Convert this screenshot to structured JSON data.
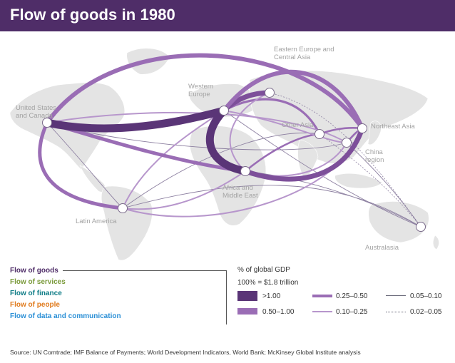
{
  "title": "Flow of goods in 1980",
  "regions": [
    {
      "id": "us_canada",
      "label": "United States\nand Canada"
    },
    {
      "id": "western_europe",
      "label": "Western\nEurope"
    },
    {
      "id": "eastern_europe",
      "label": "Eastern Europe and\nCentral Asia"
    },
    {
      "id": "other_asia",
      "label": "Other Asia"
    },
    {
      "id": "northeast_asia",
      "label": "Northeast Asia"
    },
    {
      "id": "china",
      "label": "China\nregion"
    },
    {
      "id": "africa_me",
      "label": "Africa and\nMiddle East"
    },
    {
      "id": "latin_america",
      "label": "Latin America"
    },
    {
      "id": "australasia",
      "label": "Australasia"
    }
  ],
  "flows": [
    {
      "from": "us_canada",
      "to": "western_europe",
      "tier": ">1.00"
    },
    {
      "from": "us_canada",
      "to": "northeast_asia",
      "tier": "0.50–1.00"
    },
    {
      "from": "us_canada",
      "to": "africa_me",
      "tier": "0.50–1.00"
    },
    {
      "from": "us_canada",
      "to": "latin_america",
      "tier": "0.50–1.00"
    },
    {
      "from": "western_europe",
      "to": "africa_me",
      "tier": ">1.00"
    },
    {
      "from": "western_europe",
      "to": "northeast_asia",
      "tier": "0.50–1.00"
    },
    {
      "from": "western_europe",
      "to": "eastern_europe",
      "tier": "0.25–0.50"
    },
    {
      "from": "northeast_asia",
      "to": "africa_me",
      "tier": "0.50–1.00"
    }
  ],
  "legend": {
    "flow_types": [
      {
        "label": "Flow of goods",
        "color": "#4f2d68"
      },
      {
        "label": "Flow of services",
        "color": "#7a9a3a"
      },
      {
        "label": "Flow of finance",
        "color": "#0e7c86"
      },
      {
        "label": "Flow of people",
        "color": "#e07b1d"
      },
      {
        "label": "Flow of data and communication",
        "color": "#2a8fd6"
      }
    ],
    "scale_title": "% of global GDP",
    "scale_subtitle": "100% = $1.8 trillion",
    "tiers": [
      ">1.00",
      "0.50–1.00",
      "0.25–0.50",
      "0.10–0.25",
      "0.05–0.10",
      "0.02–0.05"
    ]
  },
  "colors": {
    "brand": "#4f2d68",
    "flow_dark": "#5a3577",
    "flow_mid": "#9a6db5",
    "flow_light": "#b796cc",
    "map_land": "#e4e4e4"
  },
  "source": "Source: UN Comtrade; IMF Balance of Payments; World Development Indicators, World Bank; McKinsey Global Institute analysis"
}
